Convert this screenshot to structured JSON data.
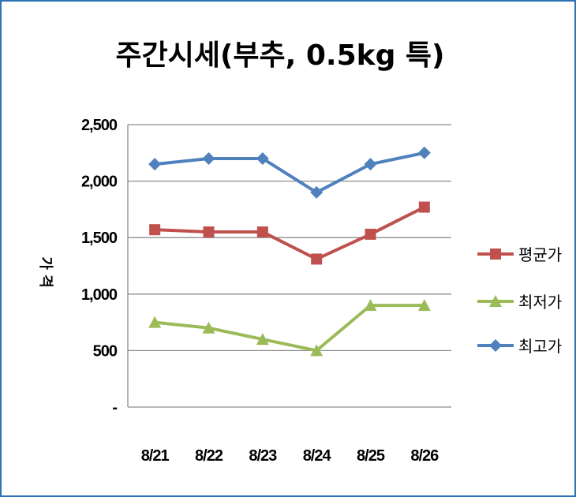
{
  "chart_data": {
    "type": "line",
    "title": "주간시세(부추, 0.5kg 특)",
    "ylabel": "가 격",
    "categories": [
      "8/21",
      "8/22",
      "8/23",
      "8/24",
      "8/25",
      "8/26"
    ],
    "ylim": [
      0,
      2500
    ],
    "yticks": [
      0,
      500,
      1000,
      1500,
      2000,
      2500
    ],
    "ytick_labels": [
      "-",
      "500",
      "1,000",
      "1,500",
      "2,000",
      "2,500"
    ],
    "grid": true,
    "legend": "right",
    "series": [
      {
        "name": "평균가",
        "color": "#c0504d",
        "marker": "square",
        "values": [
          1570,
          1550,
          1550,
          1310,
          1530,
          1770
        ]
      },
      {
        "name": "최저가",
        "color": "#9bbb59",
        "marker": "triangle",
        "values": [
          750,
          700,
          600,
          500,
          900,
          900
        ]
      },
      {
        "name": "최고가",
        "color": "#4f81bd",
        "marker": "diamond",
        "values": [
          2150,
          2200,
          2200,
          1900,
          2150,
          2250
        ]
      }
    ]
  }
}
